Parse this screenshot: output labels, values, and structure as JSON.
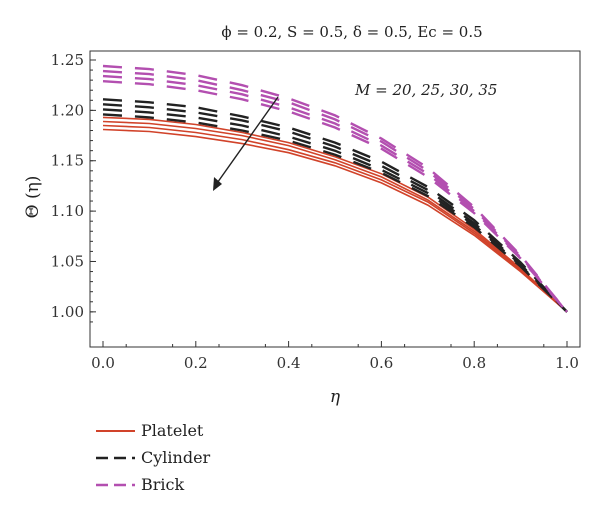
{
  "chart_data": {
    "type": "line",
    "title": "ϕ = 0.2, S = 0.5, δ = 0.5, Ec = 0.5",
    "xlabel": "η",
    "ylabel": "Θ (η)",
    "xlim": [
      0,
      1
    ],
    "ylim": [
      0.98,
      1.25
    ],
    "x_ticks": [
      "0.0",
      "0.2",
      "0.4",
      "0.6",
      "0.8",
      "1.0"
    ],
    "y_ticks": [
      "1.00",
      "1.05",
      "1.10",
      "1.15",
      "1.20",
      "1.25"
    ],
    "annotation": "M = 20, 25, 30, 35",
    "grid": false,
    "legend_position": "bottom-left",
    "x": [
      0.0,
      0.1,
      0.2,
      0.3,
      0.4,
      0.5,
      0.6,
      0.7,
      0.8,
      0.9,
      1.0
    ],
    "series": [
      {
        "name": "Platelet",
        "M": 20,
        "style": "solid",
        "color": "#d1432a",
        "values": [
          1.193,
          1.191,
          1.186,
          1.178,
          1.168,
          1.154,
          1.137,
          1.114,
          1.082,
          1.043,
          1.0
        ]
      },
      {
        "name": "Platelet",
        "M": 25,
        "style": "solid",
        "color": "#d1432a",
        "values": [
          1.189,
          1.187,
          1.182,
          1.175,
          1.165,
          1.151,
          1.134,
          1.111,
          1.08,
          1.042,
          1.0
        ]
      },
      {
        "name": "Platelet",
        "M": 30,
        "style": "solid",
        "color": "#d1432a",
        "values": [
          1.185,
          1.183,
          1.178,
          1.171,
          1.161,
          1.148,
          1.131,
          1.109,
          1.078,
          1.041,
          1.0
        ]
      },
      {
        "name": "Platelet",
        "M": 35,
        "style": "solid",
        "color": "#d1432a",
        "values": [
          1.181,
          1.179,
          1.174,
          1.167,
          1.158,
          1.145,
          1.128,
          1.106,
          1.076,
          1.04,
          1.0
        ]
      },
      {
        "name": "Cylinder",
        "M": 20,
        "style": "dashed",
        "color": "#222222",
        "values": [
          1.211,
          1.208,
          1.203,
          1.194,
          1.183,
          1.168,
          1.149,
          1.124,
          1.091,
          1.049,
          1.0
        ]
      },
      {
        "name": "Cylinder",
        "M": 25,
        "style": "dashed",
        "color": "#222222",
        "values": [
          1.206,
          1.203,
          1.198,
          1.19,
          1.179,
          1.164,
          1.145,
          1.121,
          1.088,
          1.047,
          1.0
        ]
      },
      {
        "name": "Cylinder",
        "M": 30,
        "style": "dashed",
        "color": "#222222",
        "values": [
          1.201,
          1.198,
          1.193,
          1.185,
          1.174,
          1.16,
          1.141,
          1.118,
          1.086,
          1.046,
          1.0
        ]
      },
      {
        "name": "Cylinder",
        "M": 35,
        "style": "dashed",
        "color": "#222222",
        "values": [
          1.196,
          1.193,
          1.188,
          1.18,
          1.17,
          1.156,
          1.138,
          1.115,
          1.084,
          1.045,
          1.0
        ]
      },
      {
        "name": "Brick",
        "M": 20,
        "style": "dashed",
        "color": "#b34fb0",
        "values": [
          1.244,
          1.241,
          1.235,
          1.225,
          1.212,
          1.195,
          1.172,
          1.143,
          1.104,
          1.056,
          1.0
        ]
      },
      {
        "name": "Brick",
        "M": 25,
        "style": "dashed",
        "color": "#b34fb0",
        "values": [
          1.239,
          1.236,
          1.23,
          1.22,
          1.208,
          1.191,
          1.169,
          1.14,
          1.102,
          1.055,
          1.0
        ]
      },
      {
        "name": "Brick",
        "M": 30,
        "style": "dashed",
        "color": "#b34fb0",
        "values": [
          1.234,
          1.231,
          1.225,
          1.216,
          1.203,
          1.187,
          1.165,
          1.137,
          1.1,
          1.054,
          1.0
        ]
      },
      {
        "name": "Brick",
        "M": 35,
        "style": "dashed",
        "color": "#b34fb0",
        "values": [
          1.229,
          1.226,
          1.22,
          1.211,
          1.199,
          1.183,
          1.162,
          1.134,
          1.098,
          1.053,
          1.0
        ]
      }
    ],
    "legend": [
      {
        "label": "Platelet",
        "style": "solid",
        "color": "#d1432a"
      },
      {
        "label": "Cylinder",
        "style": "dashed",
        "color": "#222222"
      },
      {
        "label": "Brick",
        "style": "dashed",
        "color": "#b34fb0"
      }
    ]
  }
}
